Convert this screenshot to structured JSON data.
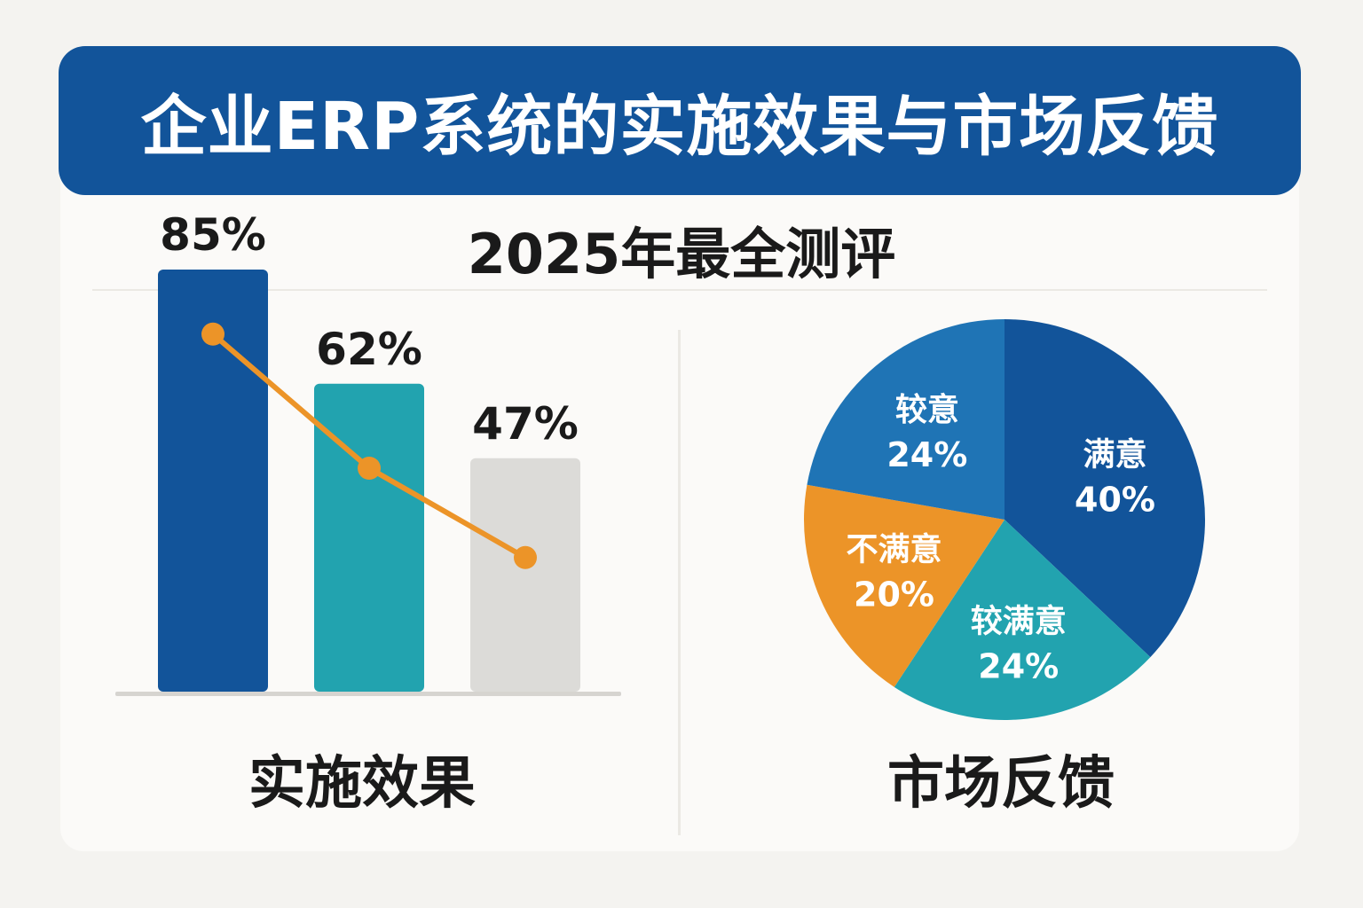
{
  "header": {
    "title": "企业ERP系统的实施效果与市场反馈",
    "subtitle": "2025年最全测评"
  },
  "colors": {
    "banner": "#12549a",
    "navy": "#12549a",
    "teal": "#22a3af",
    "gray": "#dcdbd8",
    "orange": "#ec9428",
    "mid_blue": "#1f74b5"
  },
  "chart_data": [
    {
      "type": "bar",
      "title": "实施效果",
      "categories": [
        "",
        "",
        ""
      ],
      "values": [
        85,
        62,
        47
      ],
      "value_labels": [
        "85%",
        "62%",
        "47%"
      ],
      "bar_colors": [
        "#12549a",
        "#22a3af",
        "#dcdbd8"
      ],
      "ylim": [
        0,
        100
      ],
      "overlay_line": {
        "color": "#ec9428",
        "values": [
          72,
          45,
          27
        ]
      }
    },
    {
      "type": "pie",
      "title": "市场反馈",
      "slices": [
        {
          "name": "满意",
          "value": 40,
          "label": "40%",
          "color": "#12549a"
        },
        {
          "name": "较满意",
          "value": 24,
          "label": "24%",
          "color": "#22a3af"
        },
        {
          "name": "不满意",
          "value": 20,
          "label": "20%",
          "color": "#ec9428"
        },
        {
          "name": "较意",
          "value": 24,
          "label": "24%",
          "color": "#1f74b5"
        }
      ]
    }
  ]
}
